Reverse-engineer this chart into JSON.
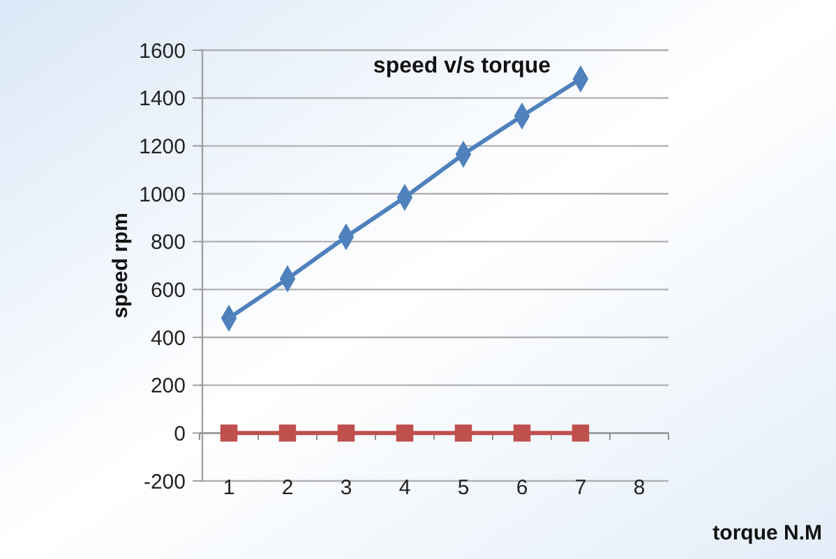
{
  "chart_data": {
    "type": "line",
    "title": "speed v/s torque",
    "xlabel": "torque N.M",
    "ylabel": "speed rpm",
    "categories": [
      "1",
      "2",
      "3",
      "4",
      "5",
      "6",
      "7",
      "8"
    ],
    "series": [
      {
        "color": "#4f81bd",
        "marker": "diamond",
        "values": [
          480,
          645,
          820,
          985,
          1165,
          1325,
          1480,
          null
        ]
      },
      {
        "color": "#c0504d",
        "marker": "square",
        "values": [
          0,
          0,
          0,
          0,
          0,
          0,
          0,
          null
        ]
      }
    ],
    "ylim": [
      -200,
      1600
    ],
    "yticks": [
      -200,
      0,
      200,
      400,
      600,
      800,
      1000,
      1200,
      1400,
      1600
    ],
    "grid": "y"
  }
}
